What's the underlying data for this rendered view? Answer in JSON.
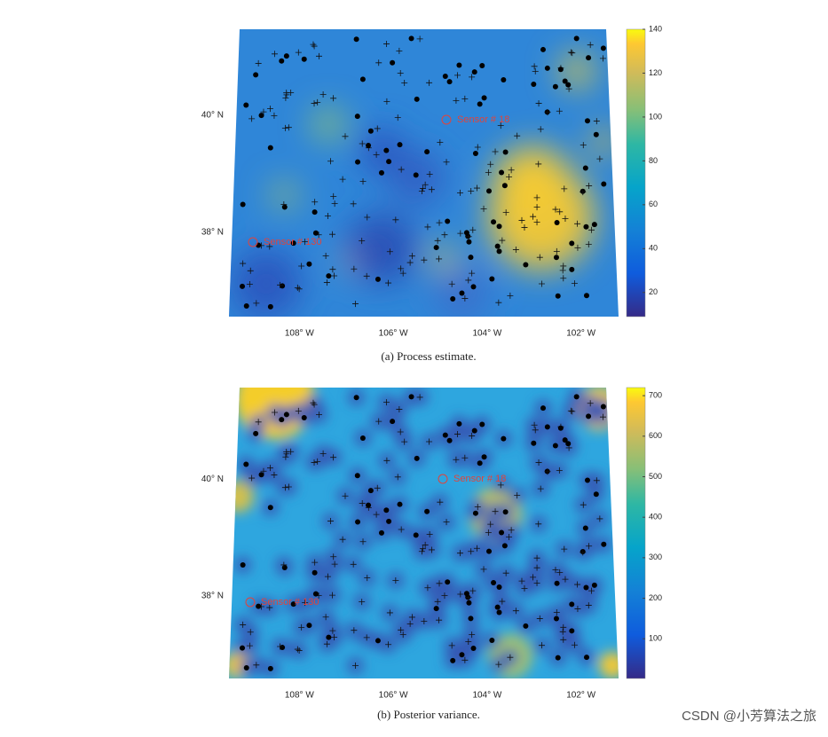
{
  "chart_data": [
    {
      "type": "heatmap",
      "caption": "(a) Process estimate.",
      "xlim": [
        -109.5,
        -101.2
      ],
      "xticks": [
        {
          "value": -108,
          "label": "108° W"
        },
        {
          "value": -106,
          "label": "106° W"
        },
        {
          "value": -104,
          "label": "104° W"
        },
        {
          "value": -102,
          "label": "102° W"
        }
      ],
      "ylim": [
        36.56,
        41.47
      ],
      "yticks": [
        {
          "value": 38,
          "label": "38° N"
        },
        {
          "value": 40,
          "label": "40° N"
        }
      ],
      "clim": [
        9,
        140
      ],
      "cticks": [
        20,
        40,
        60,
        80,
        100,
        120,
        140
      ],
      "annotations": [
        "Sensor # 18",
        "Sensor # 130"
      ]
    },
    {
      "type": "heatmap",
      "caption": "(b) Posterior variance.",
      "xlim": [
        -109.5,
        -101.2
      ],
      "xticks": [
        {
          "value": -108,
          "label": "108° W"
        },
        {
          "value": -106,
          "label": "106° W"
        },
        {
          "value": -104,
          "label": "104° W"
        },
        {
          "value": -102,
          "label": "102° W"
        }
      ],
      "ylim": [
        36.58,
        41.57
      ],
      "yticks": [
        {
          "value": 38,
          "label": "38° N"
        },
        {
          "value": 40,
          "label": "40° N"
        }
      ],
      "clim": [
        2,
        720
      ],
      "cticks": [
        100,
        200,
        300,
        400,
        500,
        600,
        700
      ],
      "annotations": [
        "Sensor # 18",
        "Sensor # 130"
      ]
    }
  ],
  "watermark": "CSDN @小芳算法之旅"
}
